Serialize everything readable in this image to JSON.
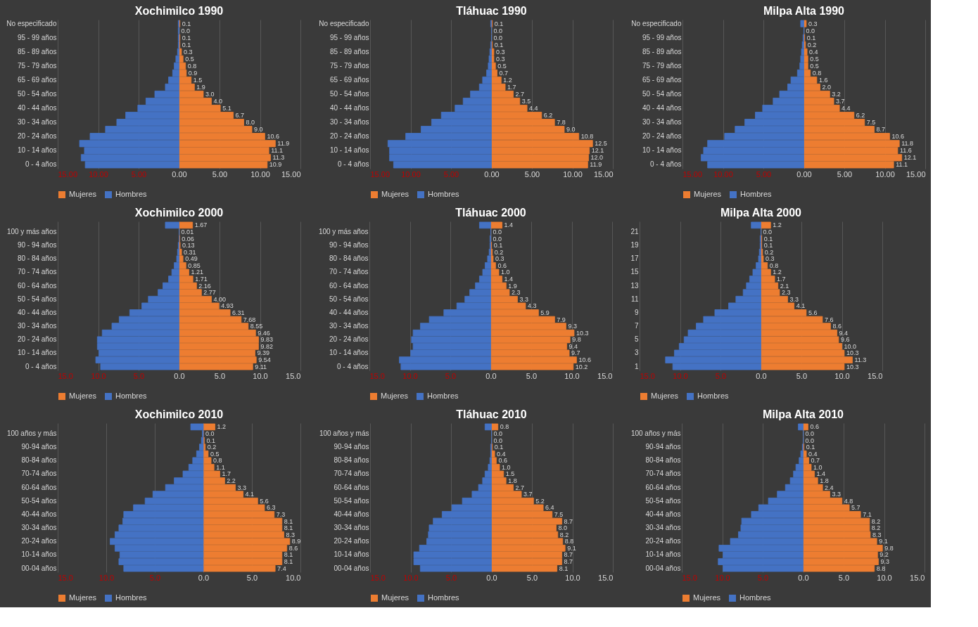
{
  "chart_data": [
    {
      "type": "bar",
      "orientation": "horizontal",
      "stacked": true,
      "title": "Xochimilco 1990",
      "grid": "x",
      "legend": "bottom",
      "categories": [
        "No especificado",
        null,
        "95 - 99 años",
        null,
        "85 - 89 años",
        null,
        "75 - 79 años",
        null,
        "65 - 69 años",
        null,
        "50 - 54 años",
        null,
        "40 - 44 años",
        null,
        "30 - 34 años",
        null,
        "20 - 24 años",
        null,
        "10 - 14 años",
        null,
        "0 - 4 años"
      ],
      "xlim": [
        -15,
        15
      ],
      "xticks": [
        {
          "value": -15,
          "label": "15.00"
        },
        {
          "value": -10,
          "label": "10.00"
        },
        {
          "value": -5,
          "label": "5.00"
        },
        {
          "value": 0,
          "label": "0.00"
        },
        {
          "value": 5,
          "label": "5.00"
        },
        {
          "value": 10,
          "label": "10.00"
        },
        {
          "value": 15,
          "label": "15.00"
        }
      ],
      "series": [
        {
          "name": "Mujeres",
          "color": "#ed7d31",
          "values": [
            0.1,
            0.0,
            0.1,
            0.1,
            0.3,
            0.5,
            0.8,
            0.9,
            1.5,
            1.9,
            3.0,
            4.0,
            5.1,
            6.7,
            8.0,
            9.0,
            10.6,
            11.9,
            11.1,
            11.3,
            10.9
          ],
          "value_labels": [
            "0.1",
            "0.0",
            "0.1",
            "0.1",
            "0.3",
            "0.5",
            "0.8",
            "0.9",
            "1.5",
            "1.9",
            "3.0",
            "4.0",
            "5.1",
            "6.7",
            "8.0",
            "9.0",
            "10.6",
            "11.9",
            "11.1",
            "11.3",
            "10.9"
          ]
        },
        {
          "name": "Hombres",
          "color": "#4472c4",
          "values": [
            -0.1,
            -0.1,
            -0.1,
            -0.1,
            -0.2,
            -0.4,
            -0.6,
            -0.8,
            -1.3,
            -1.7,
            -3.0,
            -4.1,
            -5.1,
            -6.6,
            -7.7,
            -9.1,
            -11.0,
            -12.3,
            -11.7,
            -12.1,
            -11.6
          ]
        }
      ]
    },
    {
      "type": "bar",
      "orientation": "horizontal",
      "stacked": true,
      "title": "Tláhuac 1990",
      "grid": "x",
      "legend": "bottom",
      "categories": [
        "No especificado",
        null,
        "95 - 99 años",
        null,
        "85 - 89 años",
        null,
        "75 - 79 años",
        null,
        "65 - 69 años",
        null,
        "50 - 54 años",
        null,
        "40 - 44 años",
        null,
        "30 - 34 años",
        null,
        "20 - 24 años",
        null,
        "10 - 14 años",
        null,
        "0 - 4 años"
      ],
      "xlim": [
        -15,
        15
      ],
      "xticks": [
        {
          "value": -15,
          "label": "15.00"
        },
        {
          "value": -10,
          "label": "10.00"
        },
        {
          "value": -5,
          "label": "5.00"
        },
        {
          "value": 0,
          "label": "0.00"
        },
        {
          "value": 5,
          "label": "5.00"
        },
        {
          "value": 10,
          "label": "10.00"
        },
        {
          "value": 15,
          "label": "15.00"
        }
      ],
      "series": [
        {
          "name": "Mujeres",
          "color": "#ed7d31",
          "values": [
            0.1,
            0.0,
            0.0,
            0.1,
            0.3,
            0.3,
            0.5,
            0.7,
            1.2,
            1.7,
            2.7,
            3.5,
            4.4,
            6.2,
            7.8,
            9.0,
            10.8,
            12.5,
            12.1,
            12.0,
            11.9
          ],
          "value_labels": [
            "0.1",
            "0.0",
            "0.0",
            "0.1",
            "0.3",
            "0.3",
            "0.5",
            "0.7",
            "1.2",
            "1.7",
            "2.7",
            "3.5",
            "4.4",
            "6.2",
            "7.8",
            "9.0",
            "10.8",
            "12.5",
            "12.1",
            "12.0",
            "11.9"
          ]
        },
        {
          "name": "Hombres",
          "color": "#4472c4",
          "values": [
            -0.1,
            0.0,
            0.0,
            -0.1,
            -0.2,
            -0.3,
            -0.4,
            -0.6,
            -1.1,
            -1.5,
            -2.6,
            -3.5,
            -4.5,
            -6.2,
            -7.4,
            -8.7,
            -10.6,
            -12.8,
            -12.6,
            -12.6,
            -12.1
          ]
        }
      ]
    },
    {
      "type": "bar",
      "orientation": "horizontal",
      "stacked": true,
      "title": "Milpa Alta 1990",
      "grid": "x",
      "legend": "bottom",
      "categories": [
        "No especificado",
        null,
        "95 - 99 años",
        null,
        "85 - 89 años",
        null,
        "75 - 79 años",
        null,
        "65 - 69 años",
        null,
        "50 - 54 años",
        null,
        "40 - 44 años",
        null,
        "30 - 34 años",
        null,
        "20 - 24 años",
        null,
        "10 - 14 años",
        null,
        "0 - 4 años"
      ],
      "xlim": [
        -15,
        15
      ],
      "xticks": [
        {
          "value": -15,
          "label": "15.00"
        },
        {
          "value": -10,
          "label": "10.00"
        },
        {
          "value": -5,
          "label": "5.00"
        },
        {
          "value": 0,
          "label": "0.00"
        },
        {
          "value": 5,
          "label": "5.00"
        },
        {
          "value": 10,
          "label": "10.00"
        },
        {
          "value": 15,
          "label": "15.00"
        }
      ],
      "series": [
        {
          "name": "Mujeres",
          "color": "#ed7d31",
          "values": [
            0.3,
            0.0,
            0.1,
            0.2,
            0.4,
            0.5,
            0.5,
            0.8,
            1.6,
            2.0,
            3.2,
            3.7,
            4.4,
            6.2,
            7.5,
            8.7,
            10.6,
            11.8,
            11.6,
            12.1,
            11.1
          ],
          "value_labels": [
            "0.3",
            "0.0",
            "0.1",
            "0.2",
            "0.4",
            "0.5",
            "0.5",
            "0.8",
            "1.6",
            "2.0",
            "3.2",
            "3.7",
            "4.4",
            "6.2",
            "7.5",
            "8.7",
            "10.6",
            "11.8",
            "11.6",
            "12.1",
            "11.1"
          ]
        },
        {
          "name": "Hombres",
          "color": "#4472c4",
          "values": [
            -0.4,
            0.0,
            -0.1,
            -0.2,
            -0.3,
            -0.4,
            -0.5,
            -0.8,
            -1.6,
            -2.0,
            -3.0,
            -3.8,
            -5.1,
            -6.0,
            -7.3,
            -8.5,
            -9.8,
            -11.9,
            -12.4,
            -12.7,
            -11.9
          ]
        }
      ]
    },
    {
      "type": "bar",
      "orientation": "horizontal",
      "stacked": true,
      "title": "Xochimilco 2000",
      "grid": "x",
      "legend": "bottom",
      "categories": [
        null,
        "100 y más años",
        null,
        "90 - 94 años",
        null,
        "80 - 84 años",
        null,
        "70 - 74 años",
        null,
        "60 - 64 años",
        null,
        "50 - 54 años",
        null,
        "40 - 44 años",
        null,
        "30 - 34 años",
        null,
        "20 - 24 años",
        null,
        "10 - 14 años",
        null,
        "0 - 4 años"
      ],
      "xlim": [
        -15,
        15
      ],
      "xticks": [
        {
          "value": -15,
          "label": "15.0"
        },
        {
          "value": -10,
          "label": "10.0"
        },
        {
          "value": -5,
          "label": "5.0"
        },
        {
          "value": 0,
          "label": "0.0"
        },
        {
          "value": 5,
          "label": "5.0"
        },
        {
          "value": 10,
          "label": "10.0"
        },
        {
          "value": 15,
          "label": "15.0"
        }
      ],
      "series": [
        {
          "name": "Mujeres",
          "color": "#ed7d31",
          "values": [
            1.67,
            0.01,
            0.06,
            0.13,
            0.31,
            0.49,
            0.85,
            1.21,
            1.71,
            2.16,
            2.77,
            4.0,
            4.93,
            6.31,
            7.68,
            8.55,
            9.46,
            9.83,
            9.82,
            9.39,
            9.54,
            9.11
          ],
          "value_labels": [
            "1.67",
            "0.01",
            "0.06",
            "0.13",
            "0.31",
            "0.49",
            "0.85",
            "1.21",
            "1.71",
            "2.16",
            "2.77",
            "4.00",
            "4.93",
            "6.31",
            "7.68",
            "8.55",
            "9.46",
            "9.83",
            "9.82",
            "9.39",
            "9.54",
            "9.11"
          ]
        },
        {
          "name": "Hombres",
          "color": "#4472c4",
          "values": [
            -1.7,
            0.0,
            0.0,
            -0.1,
            -0.2,
            -0.3,
            -0.6,
            -0.9,
            -1.3,
            -2.0,
            -2.6,
            -3.8,
            -4.6,
            -6.1,
            -7.4,
            -8.3,
            -9.5,
            -10.1,
            -10.1,
            -9.9,
            -10.3,
            -9.7
          ]
        }
      ]
    },
    {
      "type": "bar",
      "orientation": "horizontal",
      "stacked": true,
      "title": "Tláhuac 2000",
      "grid": "x",
      "legend": "bottom",
      "categories": [
        null,
        "100 y más años",
        null,
        "90 - 94 años",
        null,
        "80 - 84 años",
        null,
        "70 - 74 años",
        null,
        "60 - 64 años",
        null,
        "50 - 54 años",
        null,
        "40 - 44 años",
        null,
        "30 - 34 años",
        null,
        "20 - 24 años",
        null,
        "10 - 14 años",
        null,
        "0 - 4 años"
      ],
      "xlim": [
        -15,
        15
      ],
      "xticks": [
        {
          "value": -15,
          "label": "15.0"
        },
        {
          "value": -10,
          "label": "10.0"
        },
        {
          "value": -5,
          "label": "5.0"
        },
        {
          "value": 0,
          "label": "0.0"
        },
        {
          "value": 5,
          "label": "5.0"
        },
        {
          "value": 10,
          "label": "10.0"
        },
        {
          "value": 15,
          "label": "15.0"
        }
      ],
      "series": [
        {
          "name": "Mujeres",
          "color": "#ed7d31",
          "values": [
            1.4,
            0.0,
            0.0,
            0.1,
            0.2,
            0.3,
            0.6,
            1.0,
            1.4,
            1.9,
            2.3,
            3.3,
            4.3,
            5.9,
            7.9,
            9.3,
            10.3,
            9.8,
            9.4,
            9.7,
            10.6,
            10.2
          ],
          "value_labels": [
            "1.4",
            "0.0",
            "0.0",
            "0.1",
            "0.2",
            "0.3",
            "0.6",
            "1.0",
            "1.4",
            "1.9",
            "2.3",
            "3.3",
            "4.3",
            "5.9",
            "7.9",
            "9.3",
            "10.3",
            "9.8",
            "9.4",
            "9.7",
            "10.6",
            "10.2"
          ]
        },
        {
          "name": "Hombres",
          "color": "#4472c4",
          "values": [
            -1.4,
            0.0,
            -0.1,
            -0.1,
            -0.2,
            -0.4,
            -0.7,
            -1.0,
            -1.4,
            -1.9,
            -2.6,
            -3.2,
            -4.2,
            -5.8,
            -7.6,
            -8.7,
            -9.6,
            -9.8,
            -9.6,
            -9.9,
            -11.3,
            -11.1
          ]
        }
      ]
    },
    {
      "type": "bar",
      "orientation": "horizontal",
      "stacked": true,
      "title": "Milpa Alta 2000",
      "grid": "x",
      "legend": "bottom",
      "categories": [
        null,
        "21",
        null,
        "19",
        null,
        "17",
        null,
        "15",
        null,
        "13",
        null,
        "11",
        null,
        "9",
        null,
        "7",
        null,
        "5",
        null,
        "3",
        null,
        "1"
      ],
      "xlim": [
        -15,
        15
      ],
      "xticks": [
        {
          "value": -15,
          "label": "15.0"
        },
        {
          "value": -10,
          "label": "10.0"
        },
        {
          "value": -5,
          "label": "5.0"
        },
        {
          "value": 0,
          "label": "0.0"
        },
        {
          "value": 5,
          "label": "5.0"
        },
        {
          "value": 10,
          "label": "10.0"
        },
        {
          "value": 15,
          "label": "15.0"
        }
      ],
      "series": [
        {
          "name": "Mujeres",
          "color": "#ed7d31",
          "values": [
            1.2,
            0.0,
            0.1,
            0.1,
            0.2,
            0.3,
            0.8,
            1.2,
            1.7,
            2.1,
            2.3,
            3.3,
            4.1,
            5.6,
            7.6,
            8.6,
            9.4,
            9.6,
            10.0,
            10.3,
            11.3,
            10.3
          ],
          "value_labels": [
            "1.2",
            "0.0",
            "0.1",
            "0.1",
            "0.2",
            "0.3",
            "0.8",
            "1.2",
            "1.7",
            "2.1",
            "2.3",
            "3.3",
            "4.1",
            "5.6",
            "7.6",
            "8.6",
            "9.4",
            "9.6",
            "10.0",
            "10.3",
            "11.3",
            "10.3"
          ]
        },
        {
          "name": "Hombres",
          "color": "#4472c4",
          "values": [
            -1.2,
            0.0,
            -0.1,
            -0.1,
            -0.2,
            -0.3,
            -0.6,
            -1.0,
            -1.4,
            -1.8,
            -2.2,
            -3.1,
            -4.0,
            -5.7,
            -7.1,
            -8.0,
            -9.0,
            -9.5,
            -10.1,
            -10.7,
            -11.8,
            -10.9
          ]
        }
      ]
    },
    {
      "type": "bar",
      "orientation": "horizontal",
      "stacked": true,
      "title": "Xochimilco 2010",
      "grid": "x",
      "legend": "bottom",
      "categories": [
        null,
        "100 años y más",
        null,
        "90-94 años",
        null,
        "80-84 años",
        null,
        "70-74 años",
        null,
        "60-64 años",
        null,
        "50-54 años",
        null,
        "40-44 años",
        null,
        "30-34 años",
        null,
        "20-24 años",
        null,
        "10-14 años",
        null,
        "00-04 años"
      ],
      "xlim": [
        -15,
        10
      ],
      "xticks": [
        {
          "value": -15,
          "label": "15.0"
        },
        {
          "value": -10,
          "label": "10.0"
        },
        {
          "value": -5,
          "label": "5.0"
        },
        {
          "value": 0,
          "label": "0.0"
        },
        {
          "value": 5,
          "label": "5.0"
        },
        {
          "value": 10,
          "label": "10.0"
        }
      ],
      "series": [
        {
          "name": "Mujeres",
          "color": "#ed7d31",
          "values": [
            1.2,
            0.0,
            0.1,
            0.2,
            0.5,
            0.8,
            1.1,
            1.7,
            2.2,
            3.3,
            4.1,
            5.6,
            6.3,
            7.3,
            8.1,
            8.1,
            8.3,
            8.9,
            8.6,
            8.1,
            8.1,
            7.4
          ],
          "value_labels": [
            "1.2",
            "0.0",
            "0.1",
            "0.2",
            "0.5",
            "0.8",
            "1.1",
            "1.7",
            "2.2",
            "3.3",
            "4.1",
            "5.6",
            "6.3",
            "7.3",
            "8.1",
            "8.1",
            "8.3",
            "8.9",
            "8.6",
            "8.1",
            "8.1",
            "7.4"
          ]
        },
        {
          "name": "Hombres",
          "color": "#4472c4",
          "values": [
            -1.3,
            -0.1,
            -0.2,
            -0.4,
            -0.7,
            -1.1,
            -1.5,
            -2.1,
            -3.0,
            -3.9,
            -5.2,
            -6.0,
            -7.2,
            -8.2,
            -8.3,
            -8.7,
            -9.1,
            -9.6,
            -9.1,
            -8.6,
            -8.7,
            -8.2
          ]
        }
      ]
    },
    {
      "type": "bar",
      "orientation": "horizontal",
      "stacked": true,
      "title": "Tláhuac 2010",
      "grid": "x",
      "legend": "bottom",
      "categories": [
        null,
        "100 años y más",
        null,
        "90-94 años",
        null,
        "80-84 años",
        null,
        "70-74 años",
        null,
        "60-64 años",
        null,
        "50-54 años",
        null,
        "40-44 años",
        null,
        "30-34 años",
        null,
        "20-24 años",
        null,
        "10-14 años",
        null,
        "00-04 años"
      ],
      "xlim": [
        -15,
        15
      ],
      "xticks": [
        {
          "value": -15,
          "label": "15.0"
        },
        {
          "value": -10,
          "label": "10.0"
        },
        {
          "value": -5,
          "label": "5.0"
        },
        {
          "value": 0,
          "label": "0.0"
        },
        {
          "value": 5,
          "label": "5.0"
        },
        {
          "value": 10,
          "label": "10.0"
        },
        {
          "value": 15,
          "label": "15.0"
        }
      ],
      "series": [
        {
          "name": "Mujeres",
          "color": "#ed7d31",
          "values": [
            0.8,
            0.0,
            0.0,
            0.1,
            0.4,
            0.6,
            1.0,
            1.5,
            1.8,
            2.7,
            3.7,
            5.2,
            6.4,
            7.5,
            8.7,
            8.0,
            8.2,
            8.8,
            9.1,
            8.7,
            8.7,
            8.1
          ],
          "value_labels": [
            "0.8",
            "0.0",
            "0.0",
            "0.1",
            "0.4",
            "0.6",
            "1.0",
            "1.5",
            "1.8",
            "2.7",
            "3.7",
            "5.2",
            "6.4",
            "7.5",
            "8.7",
            "8.0",
            "8.2",
            "8.8",
            "9.1",
            "8.7",
            "8.7",
            "8.1"
          ]
        },
        {
          "name": "Hombres",
          "color": "#4472c4",
          "values": [
            -0.8,
            0.0,
            0.0,
            -0.1,
            -0.1,
            -0.2,
            -0.4,
            -0.8,
            -1.1,
            -1.6,
            -2.4,
            -3.6,
            -4.9,
            -6.1,
            -7.2,
            -7.7,
            -7.8,
            -8.0,
            -8.9,
            -9.6,
            -9.6,
            -8.8
          ]
        }
      ]
    },
    {
      "type": "bar",
      "orientation": "horizontal",
      "stacked": true,
      "title": "Milpa Alta 2010",
      "grid": "x",
      "legend": "bottom",
      "categories": [
        null,
        "100 años y más",
        null,
        "90-94 años",
        null,
        "80-84 años",
        null,
        "70-74 años",
        null,
        "60-64 años",
        null,
        "50-54 años",
        null,
        "40-44 años",
        null,
        "30-34 años",
        null,
        "20-24 años",
        null,
        "10-14 años",
        null,
        "00-04 años"
      ],
      "xlim": [
        -15,
        15
      ],
      "xticks": [
        {
          "value": -15,
          "label": "15.0"
        },
        {
          "value": -10,
          "label": "10.0"
        },
        {
          "value": -5,
          "label": "5.0"
        },
        {
          "value": 0,
          "label": "0.0"
        },
        {
          "value": 5,
          "label": "5.0"
        },
        {
          "value": 10,
          "label": "10.0"
        },
        {
          "value": 15,
          "label": "15.0"
        }
      ],
      "series": [
        {
          "name": "Mujeres",
          "color": "#ed7d31",
          "values": [
            0.6,
            0.0,
            0.0,
            0.1,
            0.4,
            0.7,
            1.0,
            1.4,
            1.8,
            2.4,
            3.3,
            4.8,
            5.7,
            7.1,
            8.2,
            8.2,
            8.3,
            9.1,
            9.8,
            9.2,
            9.3,
            8.8
          ],
          "value_labels": [
            "0.6",
            "0.0",
            "0.0",
            "0.1",
            "0.4",
            "0.7",
            "1.0",
            "1.4",
            "1.8",
            "2.4",
            "3.3",
            "4.8",
            "5.7",
            "7.1",
            "8.2",
            "8.2",
            "8.3",
            "9.1",
            "9.8",
            "9.2",
            "9.3",
            "8.8"
          ]
        },
        {
          "name": "Hombres",
          "color": "#4472c4",
          "values": [
            -0.6,
            0.0,
            0.0,
            -0.1,
            -0.3,
            -0.5,
            -0.9,
            -1.2,
            -1.6,
            -2.2,
            -3.2,
            -4.3,
            -5.5,
            -6.4,
            -7.6,
            -7.7,
            -8.0,
            -9.0,
            -10.4,
            -9.9,
            -10.5,
            -9.9
          ]
        }
      ]
    }
  ]
}
